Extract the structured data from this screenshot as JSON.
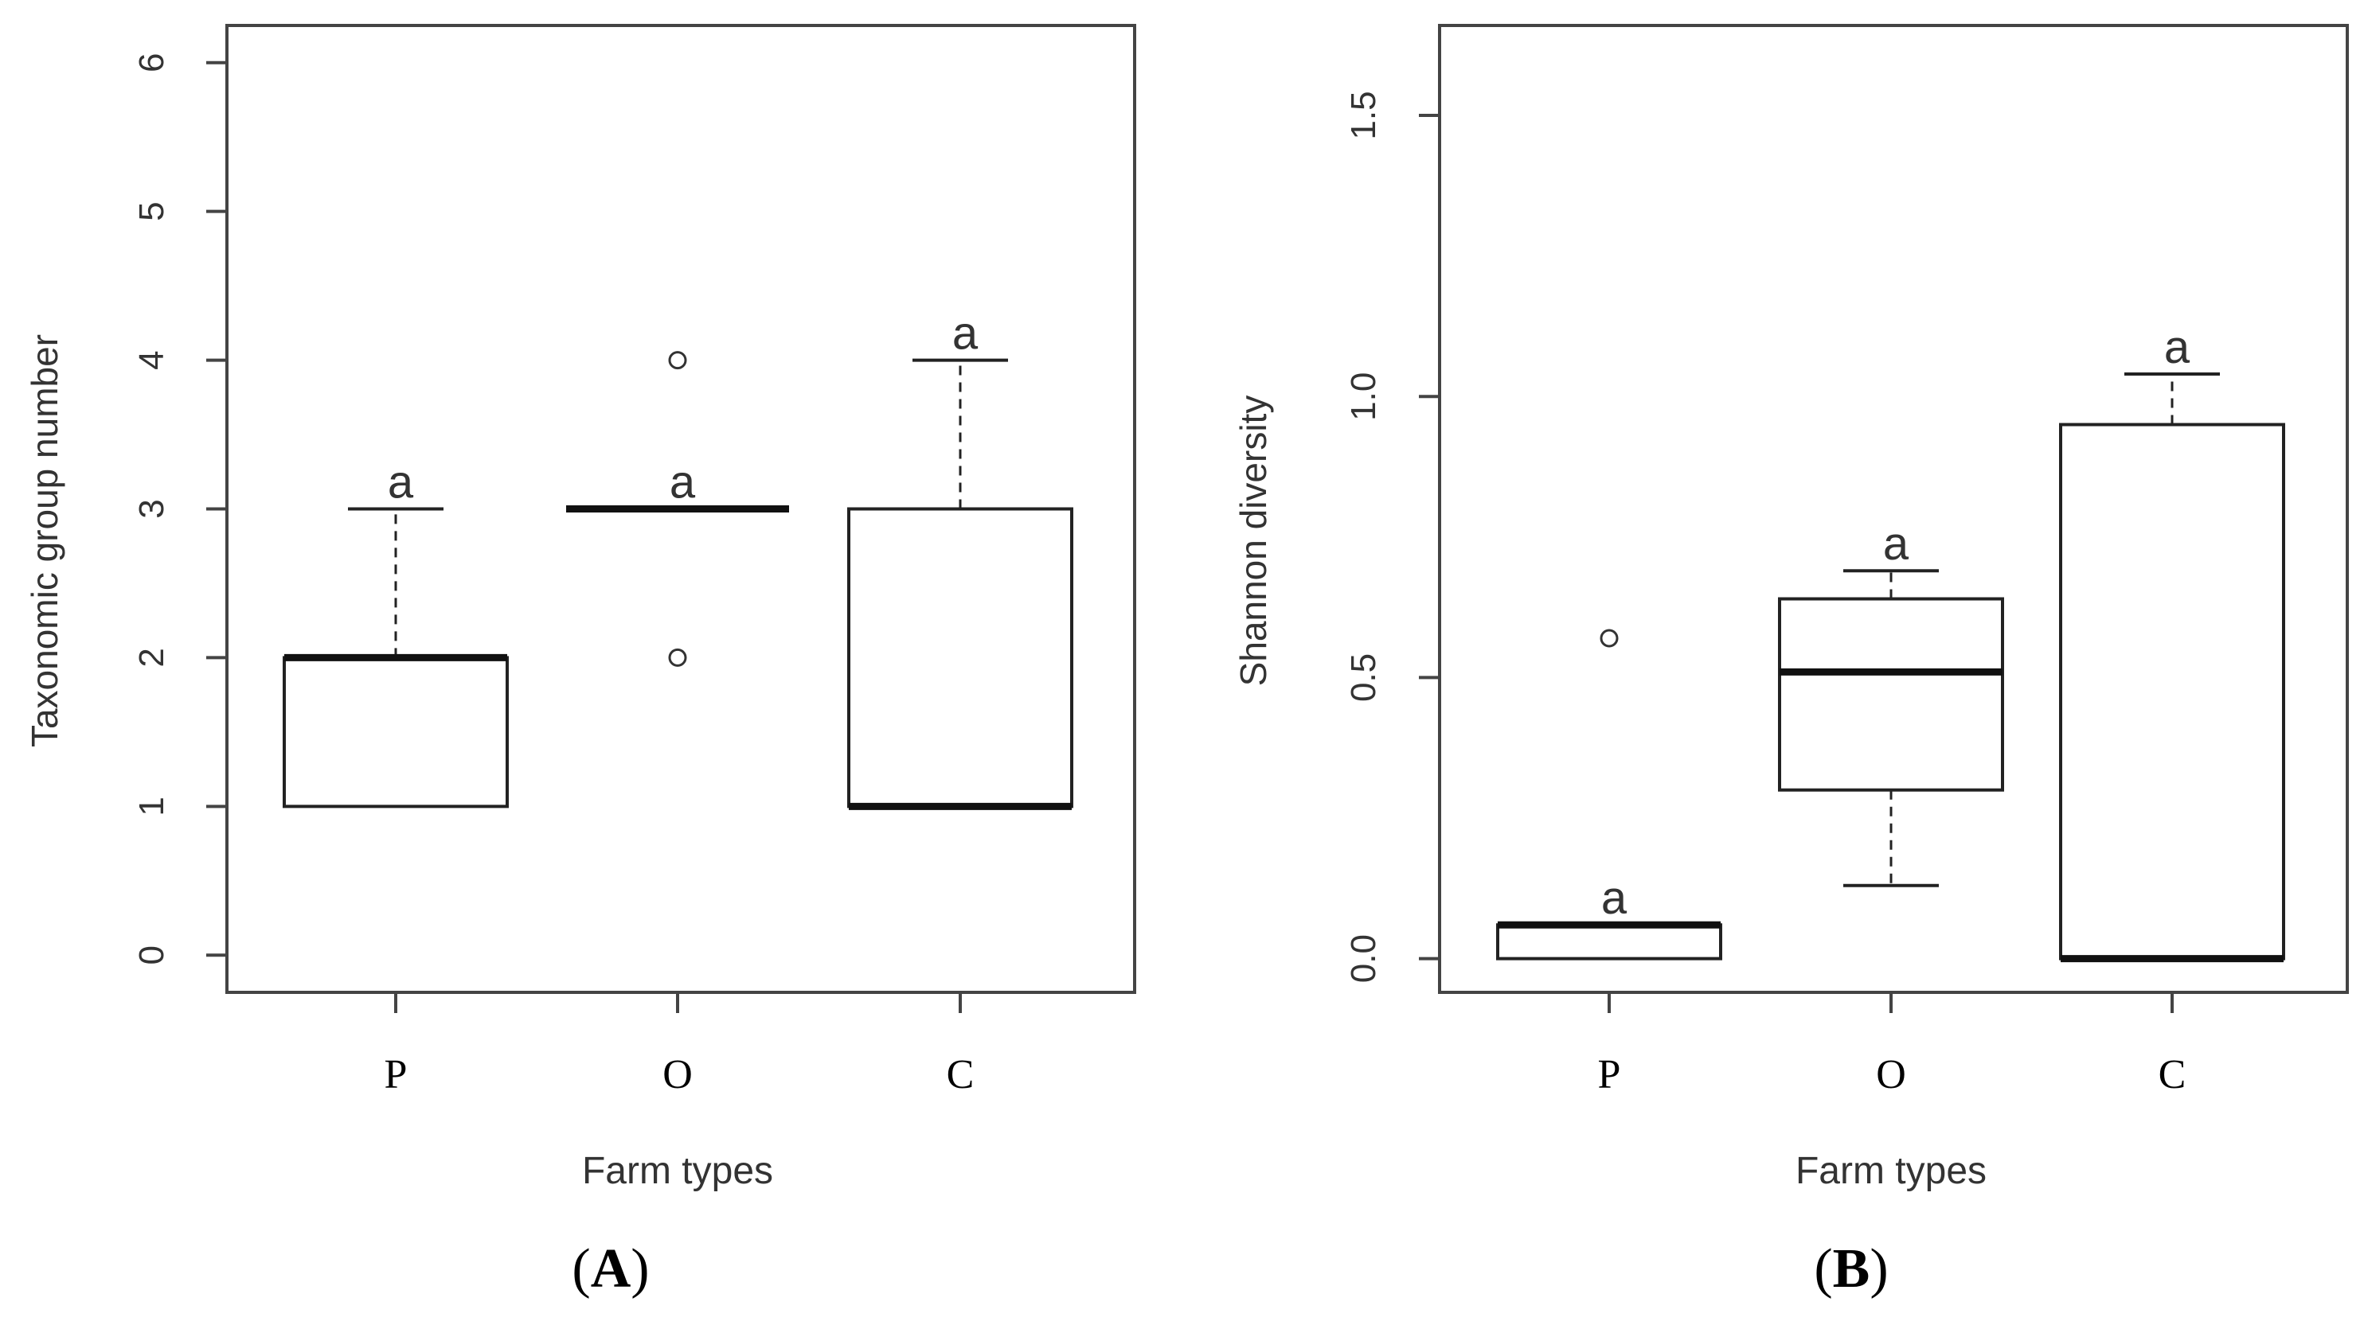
{
  "chart_data": [
    {
      "type": "box",
      "panel_label": "A",
      "xlabel": "Farm types",
      "ylabel": "Taxonomic group number",
      "ylim": [
        -0.25,
        6.25
      ],
      "yticks": [
        "0",
        "1",
        "2",
        "3",
        "4",
        "5",
        "6"
      ],
      "ytick_values": [
        0,
        1,
        2,
        3,
        4,
        5,
        6
      ],
      "categories": [
        "P",
        "O",
        "C"
      ],
      "boxes": [
        {
          "category": "P",
          "whisker_low": 1,
          "q1": 1,
          "median": 2,
          "q3": 2,
          "whisker_high": 3,
          "outliers": [],
          "letter": "a"
        },
        {
          "category": "O",
          "whisker_low": 3,
          "q1": 3,
          "median": 3,
          "q3": 3,
          "whisker_high": 3,
          "outliers": [
            2,
            4
          ],
          "letter": "a"
        },
        {
          "category": "C",
          "whisker_low": 1,
          "q1": 1,
          "median": 1,
          "q3": 3,
          "whisker_high": 4,
          "outliers": [],
          "letter": "a"
        }
      ]
    },
    {
      "type": "box",
      "panel_label": "B",
      "xlabel": "Farm types",
      "ylabel": "Shannon diversity",
      "ylim": [
        -0.06,
        1.66
      ],
      "yticks": [
        "0.0",
        "0.5",
        "1.0",
        "1.5"
      ],
      "ytick_values": [
        0,
        0.5,
        1.0,
        1.5
      ],
      "categories": [
        "P",
        "O",
        "C"
      ],
      "boxes": [
        {
          "category": "P",
          "whisker_low": 0,
          "q1": 0,
          "median": 0.06,
          "q3": 0.06,
          "whisker_high": 0.06,
          "outliers": [
            0.57
          ],
          "letter": "a"
        },
        {
          "category": "O",
          "whisker_low": 0.13,
          "q1": 0.3,
          "median": 0.51,
          "q3": 0.64,
          "whisker_high": 0.69,
          "outliers": [],
          "letter": "a"
        },
        {
          "category": "C",
          "whisker_low": 0,
          "q1": 0,
          "median": 0,
          "q3": 0.95,
          "whisker_high": 1.04,
          "outliers": [],
          "letter": "a"
        }
      ]
    }
  ]
}
